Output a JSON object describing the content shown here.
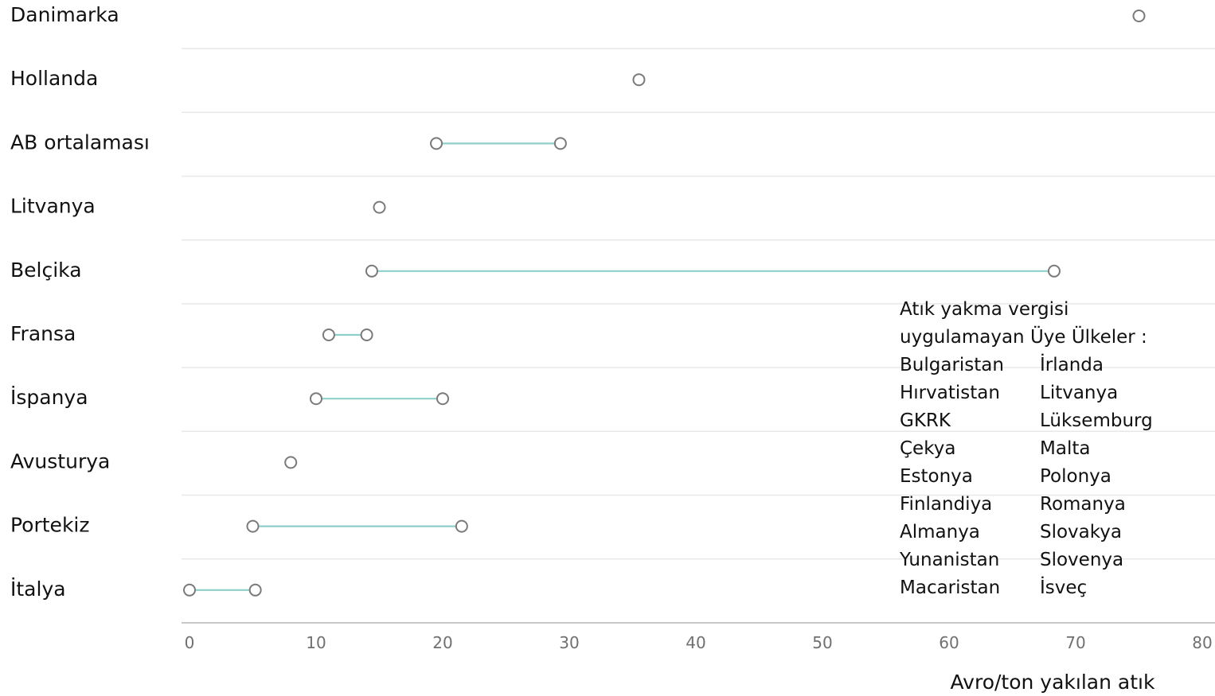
{
  "chart_data": {
    "type": "dumbbell",
    "orientation": "horizontal",
    "categories": [
      "Danimarka",
      "Hollanda",
      "AB ortalaması",
      "Litvanya",
      "Belçika",
      "Fransa",
      "İspanya",
      "Avusturya",
      "Portekiz",
      "İtalya"
    ],
    "ranges": [
      {
        "category": "Danimarka",
        "low": 75,
        "high": 75
      },
      {
        "category": "Hollanda",
        "low": 35.5,
        "high": 35.5
      },
      {
        "category": "AB ortalaması",
        "low": 19.5,
        "high": 29.3
      },
      {
        "category": "Litvanya",
        "low": 15,
        "high": 15
      },
      {
        "category": "Belçika",
        "low": 14.4,
        "high": 68.3
      },
      {
        "category": "Fransa",
        "low": 11,
        "high": 14
      },
      {
        "category": "İspanya",
        "low": 10,
        "high": 20
      },
      {
        "category": "Avusturya",
        "low": 8,
        "high": 8
      },
      {
        "category": "Portekiz",
        "low": 5,
        "high": 21.5
      },
      {
        "category": "İtalya",
        "low": 0,
        "high": 5.2
      }
    ],
    "xlabel": "Avro/ton yakılan atık",
    "xlim": [
      0,
      80
    ],
    "xticks": [
      0,
      10,
      20,
      30,
      40,
      50,
      60,
      70,
      80
    ],
    "grid": true,
    "colors": {
      "line": "#8fcfc9",
      "marker": "#7a7a7a",
      "grid": "#e8e8e8",
      "axis": "#c8c8c8"
    }
  },
  "annotation": {
    "title_lines": [
      "Atık yakma vergisi",
      "uygulamayan Üye Ülkeler :"
    ],
    "countries_left": [
      "Bulgaristan",
      "Hırvatistan",
      "GKRK",
      "Çekya",
      "Estonya",
      "Finlandiya",
      "Almanya",
      "Yunanistan",
      "Macaristan"
    ],
    "countries_right": [
      "İrlanda",
      "Litvanya",
      "Lüksemburg",
      "Malta",
      "Polonya",
      "Romanya",
      "Slovakya",
      "Slovenya",
      "İsveç"
    ]
  }
}
